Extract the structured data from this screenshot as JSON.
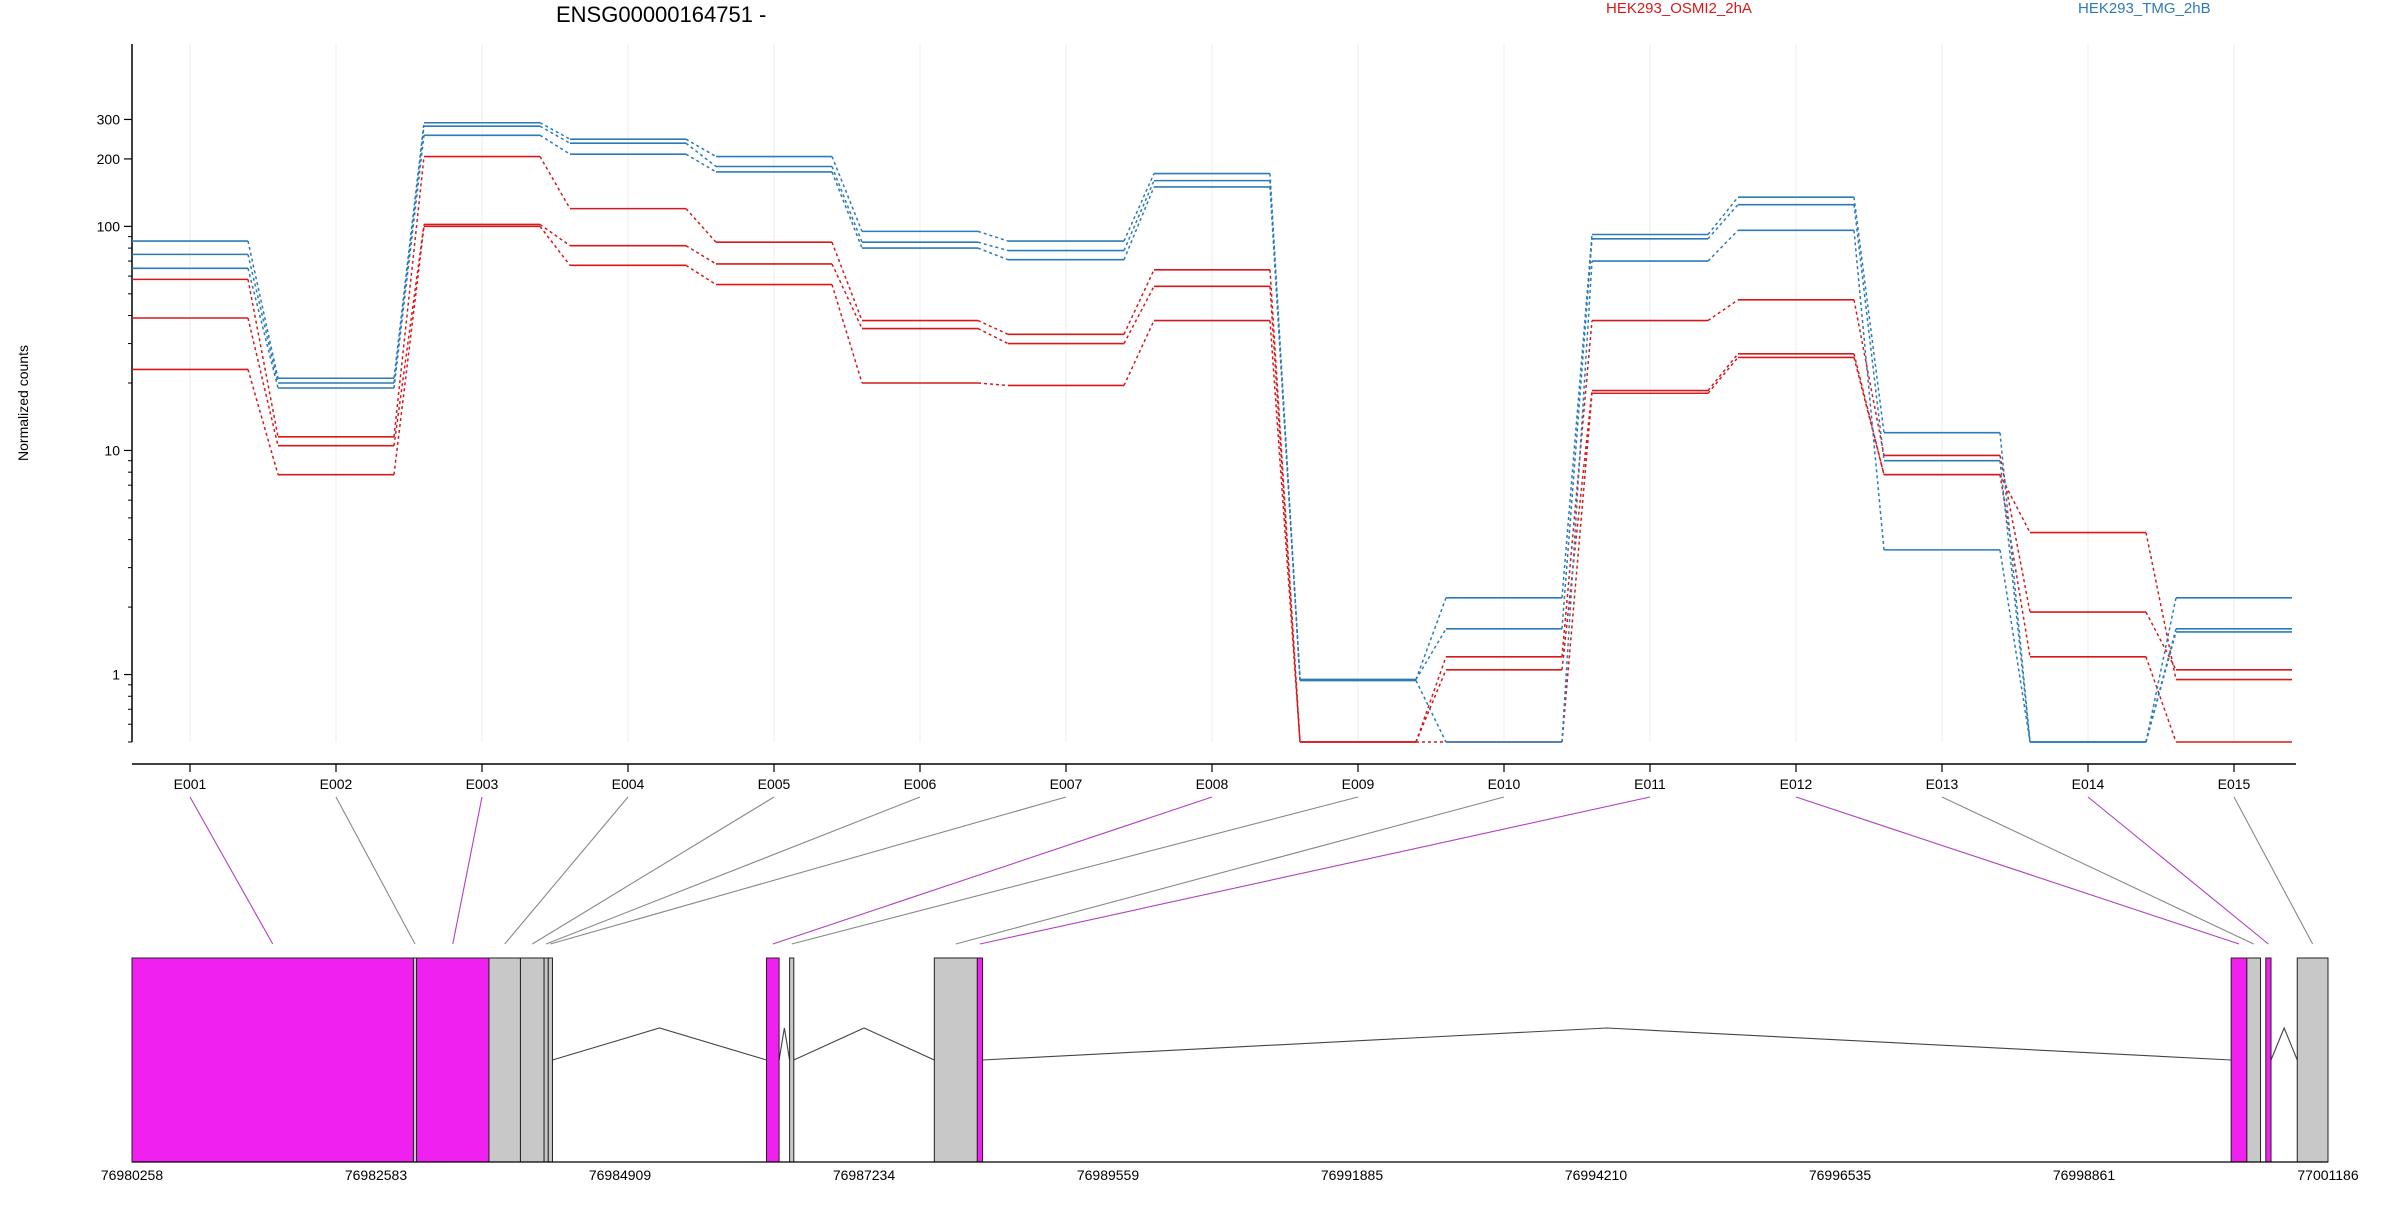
{
  "chart_data": {
    "type": "line",
    "title": "ENSG00000164751 -",
    "ylabel": "Normalized counts",
    "yscale": "log",
    "ylim": [
      0.5,
      450
    ],
    "ytick_labels": [
      "1",
      "10",
      "100",
      "200",
      "300"
    ],
    "ytick_values": [
      1,
      10,
      100,
      200,
      300
    ],
    "ytick_minor": [
      2,
      3,
      4,
      5,
      6,
      7,
      8,
      9,
      20,
      30,
      40,
      50,
      60,
      70,
      80,
      90
    ],
    "grid": "vertical",
    "legend": [
      "HEK293_OSMI2_2hA",
      "HEK293_TMG_2hB"
    ],
    "legend_position": "top",
    "categories": [
      "E001",
      "E002",
      "E003",
      "E004",
      "E005",
      "E006",
      "E007",
      "E008",
      "E009",
      "E010",
      "E011",
      "E012",
      "E013",
      "E014",
      "E015"
    ],
    "series": [
      {
        "group": "HEK293_OSMI2_2hA",
        "color": "#d7191c",
        "values": [
          58,
          11.5,
          205,
          120,
          85,
          38,
          33,
          64,
          0.5,
          1.2,
          38,
          47,
          9.5,
          1.9,
          1.05
        ]
      },
      {
        "group": "HEK293_OSMI2_2hA",
        "color": "#d7191c",
        "values": [
          39,
          10.5,
          102,
          82,
          68,
          35,
          30,
          54,
          0.5,
          1.05,
          18.5,
          27,
          7.8,
          4.3,
          0.95
        ]
      },
      {
        "group": "HEK293_OSMI2_2hA",
        "color": "#d7191c",
        "values": [
          23,
          7.8,
          100,
          67,
          55,
          20,
          19.5,
          38,
          0.5,
          0.5,
          18,
          26,
          7.8,
          1.2,
          0.5
        ]
      },
      {
        "group": "HEK293_TMG_2hB",
        "color": "#2c7bb6",
        "values": [
          86,
          21,
          290,
          245,
          205,
          95,
          86,
          172,
          0.95,
          2.2,
          92,
          135,
          12,
          0.5,
          2.2
        ]
      },
      {
        "group": "HEK293_TMG_2hB",
        "color": "#2c7bb6",
        "values": [
          75,
          20,
          280,
          235,
          185,
          85,
          78,
          160,
          0.95,
          1.6,
          88,
          125,
          9,
          0.5,
          1.6
        ]
      },
      {
        "group": "HEK293_TMG_2hB",
        "color": "#2c7bb6",
        "values": [
          65,
          19,
          255,
          210,
          175,
          80,
          71,
          150,
          0.94,
          0.5,
          70,
          96,
          3.6,
          0.5,
          1.55
        ]
      }
    ],
    "gene_model": {
      "coordinate_labels": [
        "76980258",
        "76982583",
        "76984909",
        "76987234",
        "76989559",
        "76991885",
        "76994210",
        "76996535",
        "76998861",
        "77001186"
      ],
      "coordinate_range": [
        76980258,
        77001186
      ],
      "bin_colors": {
        "highlighted": "#f020f0",
        "normal": "#c8c8c8"
      },
      "exons": [
        {
          "id": "E001",
          "highlighted": true,
          "start": 76980258,
          "end": 76982940
        },
        {
          "id": "E002",
          "highlighted": false,
          "start": 76982940,
          "end": 76982970
        },
        {
          "id": "E003",
          "highlighted": true,
          "start": 76982970,
          "end": 76983660
        },
        {
          "id": "E004",
          "highlighted": false,
          "start": 76983660,
          "end": 76983960
        },
        {
          "id": "E005",
          "highlighted": false,
          "start": 76983960,
          "end": 76984185
        },
        {
          "id": "E006",
          "highlighted": false,
          "start": 76984185,
          "end": 76984225
        },
        {
          "id": "E007",
          "highlighted": false,
          "start": 76984225,
          "end": 76984265
        },
        {
          "id": "E008",
          "highlighted": true,
          "start": 76986305,
          "end": 76986425
        },
        {
          "id": "E009",
          "highlighted": false,
          "start": 76986525,
          "end": 76986565
        },
        {
          "id": "E010",
          "highlighted": false,
          "start": 76987904,
          "end": 76988314
        },
        {
          "id": "E011",
          "highlighted": true,
          "start": 76988314,
          "end": 76988364
        },
        {
          "id": "E012",
          "highlighted": true,
          "start": 77000263,
          "end": 77000413
        },
        {
          "id": "E013",
          "highlighted": false,
          "start": 77000413,
          "end": 77000543
        },
        {
          "id": "E014",
          "highlighted": true,
          "start": 77000593,
          "end": 77000643
        },
        {
          "id": "E015",
          "highlighted": false,
          "start": 77000893,
          "end": 77001186
        }
      ]
    }
  }
}
